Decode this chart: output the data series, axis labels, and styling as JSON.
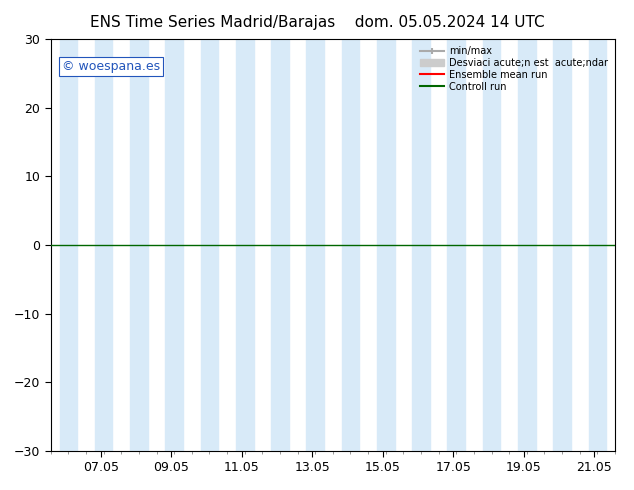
{
  "title_left": "ENS Time Series Madrid/Barajas",
  "title_right": "dom. 05.05.2024 14 UTC",
  "watermark": "© woespana.es",
  "ylim": [
    -30,
    30
  ],
  "yticks": [
    -30,
    -20,
    -10,
    0,
    10,
    20,
    30
  ],
  "xlabel_dates": [
    "07.05",
    "09.05",
    "11.05",
    "13.05",
    "15.05",
    "17.05",
    "19.05",
    "21.05"
  ],
  "x_tick_values": [
    2,
    4,
    6,
    8,
    10,
    12,
    14,
    16
  ],
  "xlim_start": 0,
  "xlim_end": 16.67,
  "blue_bands": [
    [
      0,
      0.42
    ],
    [
      5.58,
      6.42
    ],
    [
      7.58,
      8.42
    ],
    [
      9.58,
      10.42
    ],
    [
      11.58,
      12.42
    ],
    [
      13.58,
      14.42
    ],
    [
      15.58,
      16.42
    ]
  ],
  "darker_bands": [
    [
      0,
      0.42
    ],
    [
      5.58,
      6.42
    ],
    [
      9.58,
      10.42
    ],
    [
      13.58,
      14.42
    ]
  ],
  "band_color": "#d8eaf8",
  "bg_color": "#ffffff",
  "legend_labels": [
    "min/max",
    "Desviaci acute;n est  acute;ndar",
    "Ensemble mean run",
    "Controll run"
  ],
  "minmax_line_color": "#aaaaaa",
  "std_fill_color": "#cccccc",
  "ensemble_mean_color": "#ff0000",
  "control_run_color": "#006600",
  "zero_line_color": "#2d4d1e",
  "tick_label_fontsize": 9,
  "title_fontsize": 11,
  "watermark_color": "#2255bb",
  "watermark_fontsize": 9,
  "spine_color": "#000000"
}
